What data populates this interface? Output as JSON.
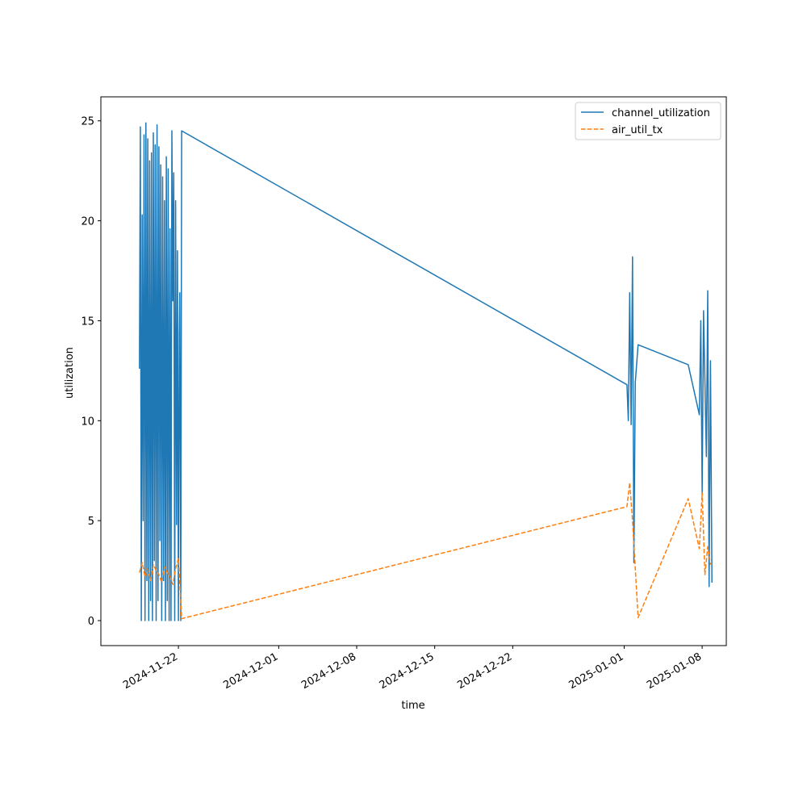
{
  "chart_data": {
    "type": "line",
    "xlabel": "time",
    "ylabel": "utilization",
    "title": "",
    "xlim": [
      "2024-11-15T01:00",
      "2025-01-10T04:00"
    ],
    "ylim": [
      -1.25,
      26.2
    ],
    "x_ticks": [
      "2024-11-22",
      "2024-12-01",
      "2024-12-08",
      "2024-12-15",
      "2024-12-22",
      "2025-01-01",
      "2025-01-08"
    ],
    "y_ticks": [
      0,
      5,
      10,
      15,
      20,
      25
    ],
    "grid": false,
    "legend": "top-right",
    "series": [
      {
        "name": "channel_utilization",
        "color": "#1f77b4",
        "style": "solid",
        "x": [
          "2024-11-18T12:00",
          "2024-11-18T14:00",
          "2024-11-18T16:00",
          "2024-11-18T18:00",
          "2024-11-18T20:00",
          "2024-11-18T22:00",
          "2024-11-19T00:00",
          "2024-11-19T02:00",
          "2024-11-19T04:00",
          "2024-11-19T06:00",
          "2024-11-19T08:00",
          "2024-11-19T10:00",
          "2024-11-19T12:00",
          "2024-11-19T14:00",
          "2024-11-19T16:00",
          "2024-11-19T18:00",
          "2024-11-19T20:00",
          "2024-11-19T22:00",
          "2024-11-20T00:00",
          "2024-11-20T02:00",
          "2024-11-20T04:00",
          "2024-11-20T06:00",
          "2024-11-20T08:00",
          "2024-11-20T10:00",
          "2024-11-20T12:00",
          "2024-11-20T14:00",
          "2024-11-20T16:00",
          "2024-11-20T18:00",
          "2024-11-20T20:00",
          "2024-11-20T22:00",
          "2024-11-21T00:00",
          "2024-11-21T02:00",
          "2024-11-21T04:00",
          "2024-11-21T06:00",
          "2024-11-21T08:00",
          "2024-11-21T10:00",
          "2024-11-21T12:00",
          "2024-11-21T14:00",
          "2024-11-21T16:00",
          "2024-11-21T18:00",
          "2024-11-21T20:00",
          "2024-11-21T22:00",
          "2024-11-22T00:00",
          "2024-11-22T02:00",
          "2024-11-22T03:00",
          "2024-11-22T05:00",
          "2024-11-22T07:00",
          "2025-01-01T06:00",
          "2025-01-01T09:00",
          "2025-01-01T12:00",
          "2025-01-01T15:00",
          "2025-01-01T18:00",
          "2025-01-01T21:00",
          "2025-01-02T00:00",
          "2025-01-02T06:00",
          "2025-01-06T18:00",
          "2025-01-07T18:00",
          "2025-01-07T21:00",
          "2025-01-08T00:00",
          "2025-01-08T03:00",
          "2025-01-08T06:00",
          "2025-01-08T09:00",
          "2025-01-08T12:00",
          "2025-01-08T15:00",
          "2025-01-08T18:00",
          "2025-01-08T21:00"
        ],
        "y": [
          12.6,
          24.7,
          0,
          20.3,
          5,
          24.3,
          0,
          24.9,
          2,
          24.1,
          0,
          23,
          1,
          23.4,
          0,
          24.4,
          3,
          23.8,
          0,
          24.8,
          1,
          23.7,
          4,
          22.8,
          0,
          22.2,
          2,
          21,
          0,
          23.2,
          1,
          22.6,
          0,
          19.6,
          0,
          24.5,
          16,
          22.4,
          0,
          21,
          4.8,
          18.5,
          0,
          14.3,
          16.4,
          0,
          24.5,
          11.8,
          10,
          16.4,
          9.8,
          18.2,
          2.9,
          11.9,
          13.8,
          12.8,
          10.3,
          15,
          6.3,
          15.5,
          12,
          8.2,
          16.5,
          1.7,
          13,
          1.9
        ],
        "y_note": ""
      },
      {
        "name": "air_util_tx",
        "color": "#ff7f0e",
        "style": "dashed",
        "x": [
          "2024-11-18T12:00",
          "2024-11-18T18:00",
          "2024-11-19T00:00",
          "2024-11-19T06:00",
          "2024-11-19T12:00",
          "2024-11-19T18:00",
          "2024-11-20T00:00",
          "2024-11-20T06:00",
          "2024-11-20T12:00",
          "2024-11-20T18:00",
          "2024-11-21T00:00",
          "2024-11-21T06:00",
          "2024-11-21T12:00",
          "2024-11-21T18:00",
          "2024-11-22T00:00",
          "2024-11-22T03:00",
          "2024-11-22T07:00",
          "2025-01-01T06:00",
          "2025-01-01T12:00",
          "2025-01-01T18:00",
          "2025-01-02T06:00",
          "2025-01-06T18:00",
          "2025-01-07T18:00",
          "2025-01-08T00:00",
          "2025-01-08T06:00",
          "2025-01-08T12:00",
          "2025-01-08T18:00"
        ],
        "y": [
          2.4,
          2.9,
          2.2,
          2.6,
          2.0,
          2.8,
          2.5,
          2.3,
          1.9,
          2.7,
          2.4,
          2.2,
          1.8,
          2.6,
          3.1,
          1.9,
          0.1,
          5.7,
          6.9,
          5.0,
          0.15,
          6.1,
          3.6,
          6.4,
          2.3,
          3.7,
          2.8
        ]
      }
    ]
  }
}
